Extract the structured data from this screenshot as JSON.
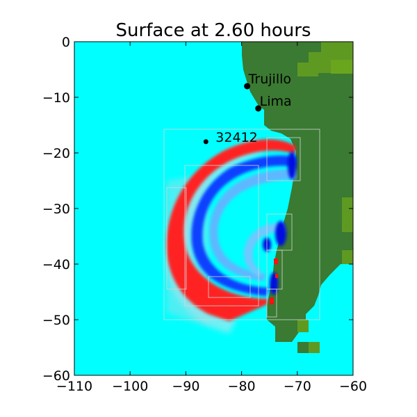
{
  "chart_data": {
    "type": "heatmap",
    "title": "Surface at 2.60 hours",
    "xlabel": "",
    "ylabel": "",
    "xlim": [
      -110,
      -60
    ],
    "ylim": [
      -60,
      0
    ],
    "xticks": [
      -110,
      -100,
      -90,
      -80,
      -70,
      -60
    ],
    "yticks": [
      0,
      -10,
      -20,
      -30,
      -40,
      -50,
      -60
    ],
    "grid": false,
    "colors": {
      "ocean": "#00ffff",
      "land": "#3a7a32",
      "highland": "#5e9a22",
      "crest": "#ff0000",
      "trough": "#0000ff",
      "mid_trough": "#2e8bff",
      "refinement_box": "#d0d0d0"
    },
    "locations": [
      {
        "name": "Trujillo",
        "lon": -79.0,
        "lat": -8.0
      },
      {
        "name": "Lima",
        "lon": -77.0,
        "lat": -12.0
      },
      {
        "name": "32412",
        "lon": -86.4,
        "lat": -17.98
      }
    ]
  }
}
